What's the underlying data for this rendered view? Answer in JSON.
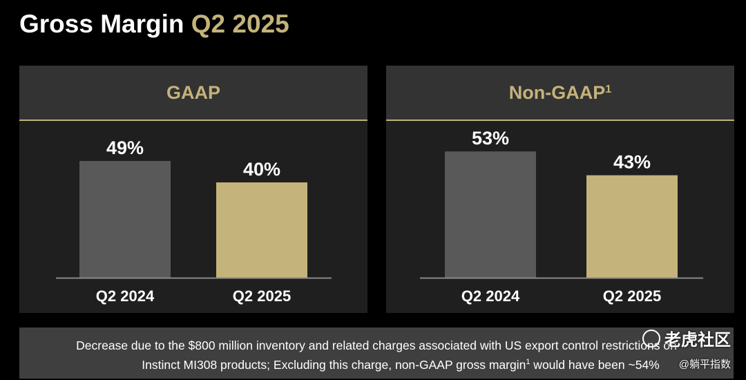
{
  "title": {
    "main": "Gross Margin",
    "accent": "Q2 2025"
  },
  "colors": {
    "accent": "#c4b37a",
    "bar_prior": "#595959",
    "bar_current": "#c4b37a",
    "panel": "#1f1f1f",
    "header": "#333333",
    "footnote_bg": "#3f3f3f"
  },
  "chart_data": [
    {
      "type": "bar",
      "title": "GAAP",
      "categories": [
        "Q2 2024",
        "Q2 2025"
      ],
      "values": [
        49,
        40
      ],
      "value_labels": [
        "49%",
        "40%"
      ],
      "ylim": [
        0,
        60
      ]
    },
    {
      "type": "bar",
      "title": "Non-GAAP",
      "title_sup": "1",
      "categories": [
        "Q2 2024",
        "Q2 2025"
      ],
      "values": [
        53,
        43
      ],
      "value_labels": [
        "53%",
        "43%"
      ],
      "ylim": [
        0,
        60
      ]
    }
  ],
  "footnote": {
    "line1": "Decrease due to the $800 million inventory and related charges associated with US export control restrictions on",
    "line2_pre": "Instinct MI308 products; Excluding this charge, non-GAAP gross margin",
    "line2_sup": "1",
    "line2_post": " would have been ~54%"
  },
  "watermark": {
    "text": "老虎社区",
    "handle": "@躺平指数",
    "icon": "tiger-icon"
  }
}
